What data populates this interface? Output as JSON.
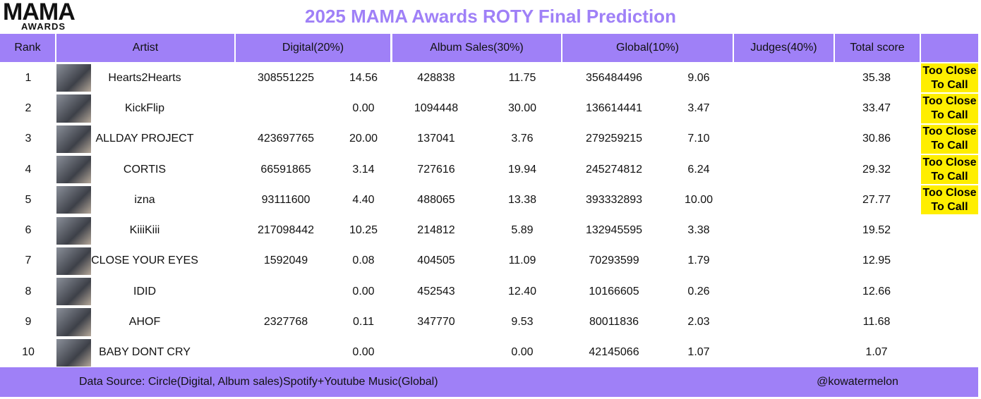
{
  "logo": {
    "text": "MAMA",
    "subtext": "AWARDS"
  },
  "header": {
    "title": "2025 MAMA Awards  ROTY Final Prediction"
  },
  "table": {
    "columns": [
      "Rank",
      "Artist",
      "Digital(20%)",
      "Album Sales(30%)",
      "Global(10%)",
      "Judges(40%)",
      "Total score"
    ],
    "rows": [
      {
        "rank": "1",
        "artist": "Hearts2Hearts",
        "digital_raw": "308551225",
        "digital_score": "14.56",
        "album_raw": "428838",
        "album_score": "11.75",
        "global_raw": "356484496",
        "global_score": "9.06",
        "total": "35.38",
        "status": "Too Close To Call"
      },
      {
        "rank": "2",
        "artist": "KickFlip",
        "digital_score": "0.00",
        "album_raw": "1094448",
        "album_score": "30.00",
        "global_raw": "136614441",
        "global_score": "3.47",
        "total": "33.47",
        "status": "Too Close To Call"
      },
      {
        "rank": "3",
        "artist": "ALLDAY PROJECT",
        "digital_raw": "423697765",
        "digital_score": "20.00",
        "album_raw": "137041",
        "album_score": "3.76",
        "global_raw": "279259215",
        "global_score": "7.10",
        "total": "30.86",
        "status": "Too Close To Call"
      },
      {
        "rank": "4",
        "artist": "CORTIS",
        "digital_raw": "66591865",
        "digital_score": "3.14",
        "album_raw": "727616",
        "album_score": "19.94",
        "global_raw": "245274812",
        "global_score": "6.24",
        "total": "29.32",
        "status": "Too Close To Call"
      },
      {
        "rank": "5",
        "artist": "izna",
        "digital_raw": "93111600",
        "digital_score": "4.40",
        "album_raw": "488065",
        "album_score": "13.38",
        "global_raw": "393332893",
        "global_score": "10.00",
        "total": "27.77",
        "status": "Too Close To Call"
      },
      {
        "rank": "6",
        "artist": "KiiiKiii",
        "digital_raw": "217098442",
        "digital_score": "10.25",
        "album_raw": "214812",
        "album_score": "5.89",
        "global_raw": "132945595",
        "global_score": "3.38",
        "total": "19.52"
      },
      {
        "rank": "7",
        "artist": "CLOSE YOUR EYES",
        "digital_raw": "1592049",
        "digital_score": "0.08",
        "album_raw": "404505",
        "album_score": "11.09",
        "global_raw": "70293599",
        "global_score": "1.79",
        "total": "12.95"
      },
      {
        "rank": "8",
        "artist": "IDID",
        "digital_score": "0.00",
        "album_raw": "452543",
        "album_score": "12.40",
        "global_raw": "10166605",
        "global_score": "0.26",
        "total": "12.66"
      },
      {
        "rank": "9",
        "artist": "AHOF",
        "digital_raw": "2327768",
        "digital_score": "0.11",
        "album_raw": "347770",
        "album_score": "9.53",
        "global_raw": "80011836",
        "global_score": "2.03",
        "total": "11.68"
      },
      {
        "rank": "10",
        "artist": "BABY DONT CRY",
        "digital_score": "0.00",
        "album_score": "0.00",
        "global_raw": "42145066",
        "global_score": "1.07",
        "total": "1.07"
      }
    ]
  },
  "footer": {
    "source": "Data Source: Circle(Digital, Album sales)Spotify+Youtube Music(Global)",
    "credit": "@kowatermelon"
  }
}
